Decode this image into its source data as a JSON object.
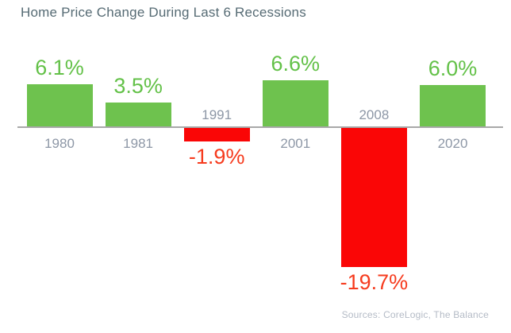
{
  "chart_data": {
    "type": "bar",
    "title": "Home Price Change During Last 6 Recessions",
    "categories": [
      "1980",
      "1981",
      "1991",
      "2001",
      "2008",
      "2020"
    ],
    "values": [
      6.1,
      3.5,
      -1.9,
      6.6,
      -19.7,
      6.0
    ],
    "value_labels": [
      "6.1%",
      "3.5%",
      "-1.9%",
      "6.6%",
      "-19.7%",
      "6.0%"
    ],
    "unit": "%",
    "baseline": 0,
    "ylim": [
      -21,
      8
    ],
    "grid": false,
    "legend": false,
    "xlabel": "",
    "ylabel": "",
    "source_note": "Sources: CoreLogic, The Balance",
    "colors": {
      "positive_bar": "#6ec24e",
      "negative_bar": "#fa0606",
      "positive_value_label": "#63c148",
      "negative_value_label": "#f63b1e",
      "category_label": "#8d97a6",
      "title": "#566b74",
      "source_note": "#b4bbc6",
      "axis_line": "#a8a8a8",
      "background": "#ffffff"
    }
  }
}
